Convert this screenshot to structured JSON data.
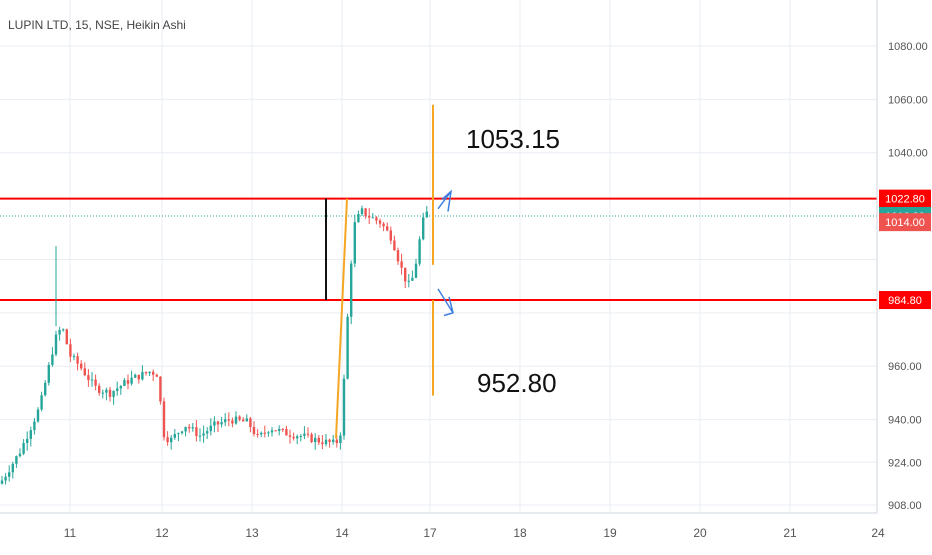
{
  "header": {
    "symbol_title": "LUPIN LTD, 15, NSE, Heikin Ashi"
  },
  "colors": {
    "up": "#26a69a",
    "down": "#ef5350",
    "level_line": "#ff0000",
    "projection": "#f5a623",
    "arrow": "#3d7fe0",
    "last_price": "#26a69a",
    "bid_box": "#ef5350",
    "grid": "#e9eef3",
    "axis_text": "#555555"
  },
  "chart_data": {
    "type": "candlestick",
    "title": "LUPIN LTD, 15, NSE, Heikin Ashi",
    "y_axis": {
      "ticks": [
        "1080.00",
        "1060.00",
        "1040.00",
        "960.00",
        "940.00",
        "924.00",
        "908.00"
      ],
      "ylim": [
        906,
        1102
      ]
    },
    "x_axis": {
      "ticks": [
        "11",
        "12",
        "13",
        "14",
        "17",
        "18",
        "19",
        "20",
        "21",
        "24"
      ]
    },
    "grid": true,
    "levels": [
      {
        "label": "1022.80",
        "value": 1022.8
      },
      {
        "label": "984.80",
        "value": 984.8
      }
    ],
    "last_price": {
      "label": "1016.30",
      "value": 1016.3
    },
    "bid_price": {
      "label": "1014.00",
      "value": 1014.0
    },
    "annotations": [
      {
        "text": "1053.15",
        "value": 1053.15
      },
      {
        "text": "952.80",
        "value": 952.8
      }
    ],
    "candles": []
  }
}
